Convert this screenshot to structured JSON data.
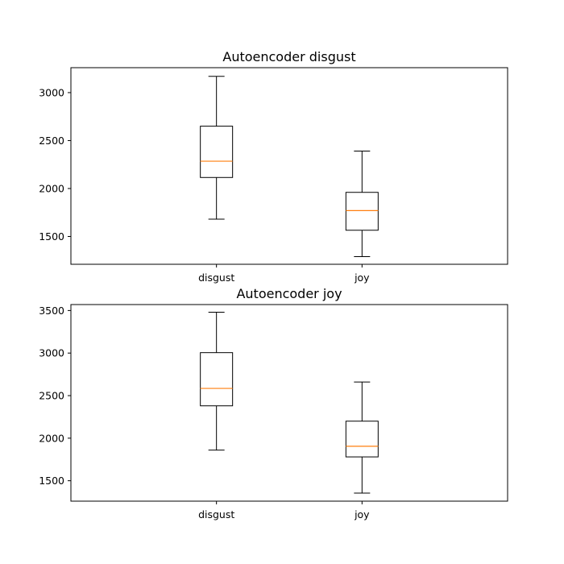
{
  "chart_data": [
    {
      "type": "box",
      "title": "Autoencoder disgust",
      "categories": [
        "disgust",
        "joy"
      ],
      "yticks": [
        1500,
        2000,
        2500,
        3000
      ],
      "ylim": [
        1210,
        3260
      ],
      "boxes": [
        {
          "category": "disgust",
          "whisker_low": 1680,
          "q1": 2115,
          "median": 2285,
          "q3": 2650,
          "whisker_high": 3170
        },
        {
          "category": "joy",
          "whisker_low": 1290,
          "q1": 1565,
          "median": 1770,
          "q3": 1960,
          "whisker_high": 2390
        }
      ],
      "grid": false
    },
    {
      "type": "box",
      "title": "Autoencoder joy",
      "categories": [
        "disgust",
        "joy"
      ],
      "yticks": [
        1500,
        2000,
        2500,
        3000,
        3500
      ],
      "ylim": [
        1260,
        3570
      ],
      "boxes": [
        {
          "category": "disgust",
          "whisker_low": 1860,
          "q1": 2380,
          "median": 2585,
          "q3": 3005,
          "whisker_high": 3480
        },
        {
          "category": "joy",
          "whisker_low": 1355,
          "q1": 1780,
          "median": 1905,
          "q3": 2200,
          "whisker_high": 2660
        }
      ],
      "grid": false
    }
  ],
  "colors": {
    "box_line": "#000000",
    "median": "#ff7f0e",
    "background": "#ffffff"
  }
}
